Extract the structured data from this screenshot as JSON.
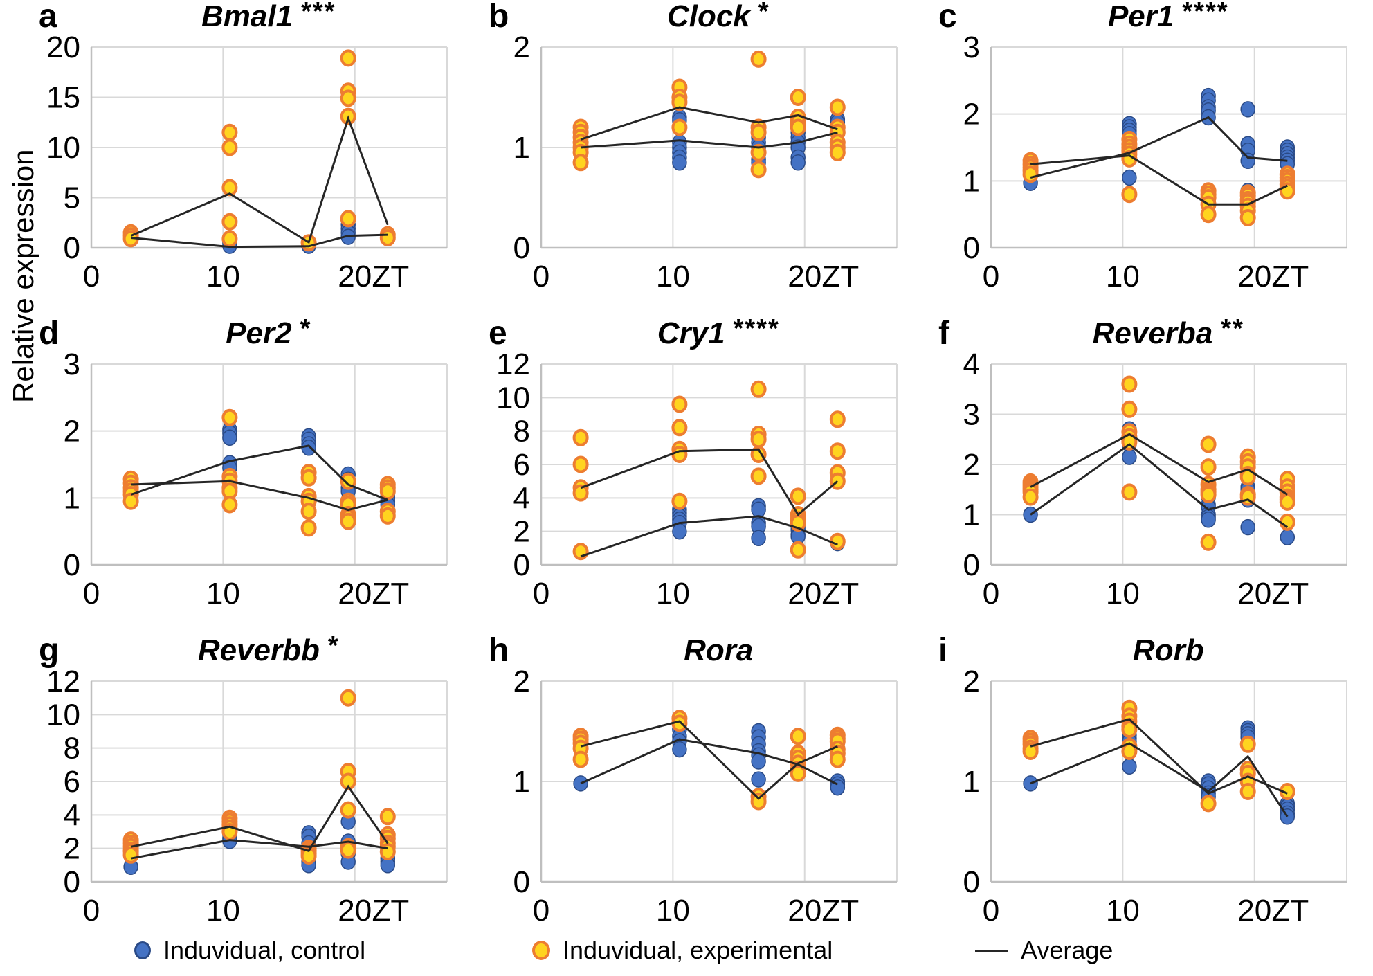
{
  "figure": {
    "ylabel": "Relative expression",
    "legend": {
      "control_label": "Induvidual, control",
      "experimental_label": "Induvidual, experimental",
      "average_label": "Average"
    },
    "colors": {
      "control_fill": "#4472c4",
      "control_stroke": "#2a4a86",
      "experimental_fill": "#ffd41f",
      "experimental_stroke": "#ed7d31",
      "average_line": "#262626",
      "grid": "#d9d9d9",
      "axis": "#bfbfbf",
      "text": "#000000"
    }
  },
  "chart_data": [
    {
      "panel": "a",
      "title": "Bmal1",
      "significance": "***",
      "type": "scatter",
      "xlabel": "ZT",
      "xticks": [
        0,
        10,
        20
      ],
      "xlim": [
        0,
        27
      ],
      "yticks": [
        0,
        5,
        10,
        15,
        20
      ],
      "ylim": [
        0,
        20
      ],
      "x": [
        3,
        10.5,
        16.5,
        19.5,
        22.5
      ],
      "control_points": [
        [
          1.0
        ],
        [
          0.5,
          0.2
        ],
        [
          0.2
        ],
        [
          2.3,
          1.9,
          1.5,
          1.1
        ],
        []
      ],
      "experimental_points": [
        [
          1.5,
          1.2,
          0.9
        ],
        [
          11.5,
          10.0,
          6.0,
          2.6,
          0.9
        ],
        [
          0.5
        ],
        [
          18.9,
          15.6,
          14.9,
          13.1,
          2.9
        ],
        [
          1.3,
          1.0
        ]
      ],
      "control_avg": [
        1.0,
        0.1,
        0.15,
        1.2,
        1.3
      ],
      "experimental_avg": [
        1.2,
        5.4,
        0.55,
        12.9,
        2.3
      ]
    },
    {
      "panel": "b",
      "title": "Clock",
      "significance": "*",
      "type": "scatter",
      "xlabel": "ZT",
      "xticks": [
        0,
        10,
        20
      ],
      "xlim": [
        0,
        27
      ],
      "yticks": [
        0,
        1,
        2
      ],
      "ylim": [
        0,
        2
      ],
      "x": [
        3,
        10.5,
        16.5,
        19.5,
        22.5
      ],
      "control_points": [
        [
          1.0
        ],
        [
          1.3,
          1.27,
          1.05,
          1.0,
          0.95,
          0.9,
          0.85
        ],
        [
          1.1,
          1.05,
          1.0,
          0.95,
          0.88,
          0.85
        ],
        [
          1.15,
          1.1,
          1.05,
          1.0,
          0.9,
          0.85
        ],
        [
          1.28,
          1.25,
          1.2,
          1.18
        ]
      ],
      "experimental_points": [
        [
          1.2,
          1.15,
          1.1,
          1.05,
          1.0,
          0.95,
          0.85
        ],
        [
          1.6,
          1.5,
          1.45,
          1.2
        ],
        [
          1.88,
          1.2,
          1.15,
          0.95,
          0.78
        ],
        [
          1.5,
          1.3,
          1.25,
          1.2
        ],
        [
          1.4,
          1.2,
          1.15,
          1.05,
          1.0,
          0.95
        ]
      ],
      "control_avg": [
        1.0,
        1.07,
        1.0,
        1.05,
        1.15
      ],
      "experimental_avg": [
        1.08,
        1.4,
        1.25,
        1.32,
        1.18
      ]
    },
    {
      "panel": "c",
      "title": "Per1",
      "significance": "****",
      "type": "scatter",
      "xlabel": "ZT",
      "xticks": [
        0,
        10,
        20
      ],
      "xlim": [
        0,
        27
      ],
      "yticks": [
        0,
        1,
        2,
        3
      ],
      "ylim": [
        0,
        3
      ],
      "x": [
        3,
        10.5,
        16.5,
        19.5,
        22.5
      ],
      "control_points": [
        [
          0.97
        ],
        [
          1.85,
          1.8,
          1.75,
          1.7,
          1.05
        ],
        [
          2.27,
          2.2,
          2.1,
          2.05,
          1.95
        ],
        [
          2.07,
          1.55,
          1.45,
          1.3,
          0.85
        ],
        [
          1.5,
          1.45,
          1.4,
          1.35,
          1.3,
          1.25
        ]
      ],
      "experimental_points": [
        [
          1.3,
          1.25,
          1.2,
          1.15,
          1.1
        ],
        [
          1.62,
          1.55,
          1.5,
          1.45,
          1.4,
          1.33,
          0.8
        ],
        [
          0.85,
          0.8,
          0.75,
          0.65,
          0.5
        ],
        [
          0.82,
          0.78,
          0.72,
          0.68,
          0.62,
          0.55,
          0.45
        ],
        [
          1.1,
          1.05,
          1.0,
          0.95,
          0.9,
          0.85
        ]
      ],
      "control_avg": [
        1.05,
        1.42,
        1.95,
        1.35,
        1.3
      ],
      "experimental_avg": [
        1.25,
        1.38,
        0.65,
        0.65,
        0.93
      ]
    },
    {
      "panel": "d",
      "title": "Per2",
      "significance": "*",
      "type": "scatter",
      "xlabel": "ZT",
      "xticks": [
        0,
        10,
        20
      ],
      "xlim": [
        0,
        27
      ],
      "yticks": [
        0,
        1,
        2,
        3
      ],
      "ylim": [
        0,
        3
      ],
      "x": [
        3,
        10.5,
        16.5,
        19.5,
        22.5
      ],
      "control_points": [
        [
          1.0
        ],
        [
          2.02,
          1.97,
          1.9,
          1.52,
          1.45,
          1.2
        ],
        [
          1.92,
          1.87,
          1.8,
          1.75
        ],
        [
          1.35,
          1.27,
          1.22,
          1.15,
          1.1
        ],
        [
          1.05,
          1.0,
          0.95,
          0.9
        ]
      ],
      "experimental_points": [
        [
          1.28,
          1.22,
          1.15,
          1.1,
          1.05,
          0.95
        ],
        [
          2.2,
          1.32,
          1.25,
          1.15,
          1.1,
          0.9
        ],
        [
          1.38,
          1.3,
          1.02,
          0.95,
          0.8,
          0.55
        ],
        [
          1.25,
          0.95,
          0.9,
          0.75,
          0.7,
          0.65
        ],
        [
          1.2,
          1.15,
          1.1,
          0.8,
          0.73
        ]
      ],
      "control_avg": [
        1.05,
        1.55,
        1.78,
        1.2,
        0.97
      ],
      "experimental_avg": [
        1.2,
        1.25,
        1.0,
        0.82,
        0.97
      ]
    },
    {
      "panel": "e",
      "title": "Cry1",
      "significance": "****",
      "type": "scatter",
      "xlabel": "ZT",
      "xticks": [
        0,
        10,
        20
      ],
      "xlim": [
        0,
        27
      ],
      "yticks": [
        0,
        2,
        4,
        6,
        8,
        10,
        12
      ],
      "ylim": [
        0,
        12
      ],
      "x": [
        3,
        10.5,
        16.5,
        19.5,
        22.5
      ],
      "control_points": [
        [],
        [
          3.3,
          3.1,
          2.9,
          2.7,
          2.5,
          2.0
        ],
        [
          3.5,
          3.3,
          2.5,
          2.3,
          1.6
        ],
        [
          2.3,
          2.1,
          1.8,
          1.7
        ],
        [
          1.3
        ]
      ],
      "experimental_points": [
        [
          7.6,
          6.0,
          4.6,
          4.3,
          0.8
        ],
        [
          9.6,
          8.2,
          6.9,
          6.6,
          3.8
        ],
        [
          10.5,
          7.8,
          7.5,
          6.6,
          5.3
        ],
        [
          4.1,
          3.0,
          2.7,
          2.5,
          0.9
        ],
        [
          8.7,
          6.8,
          5.5,
          5.0,
          1.4
        ]
      ],
      "control_avg": [
        0.5,
        2.5,
        2.9,
        2.2,
        1.2
      ],
      "experimental_avg": [
        4.6,
        6.8,
        6.9,
        3.0,
        5.0
      ]
    },
    {
      "panel": "f",
      "title": "Reverba",
      "significance": "**",
      "type": "scatter",
      "xlabel": "ZT",
      "xticks": [
        0,
        10,
        20
      ],
      "xlim": [
        0,
        27
      ],
      "yticks": [
        0,
        1,
        2,
        3,
        4
      ],
      "ylim": [
        0,
        4
      ],
      "x": [
        3,
        10.5,
        16.5,
        19.5,
        22.5
      ],
      "control_points": [
        [
          1.0
        ],
        [
          2.7,
          2.4,
          2.15
        ],
        [
          1.35,
          1.2,
          1.15,
          1.0,
          0.95,
          0.9
        ],
        [
          1.55,
          1.5,
          1.3,
          0.75
        ],
        [
          0.55
        ]
      ],
      "experimental_points": [
        [
          1.65,
          1.6,
          1.55,
          1.5,
          1.45,
          1.35
        ],
        [
          3.6,
          3.1,
          2.65,
          2.55,
          2.45,
          1.45
        ],
        [
          2.4,
          1.95,
          1.6,
          1.5,
          1.45,
          1.4,
          0.45
        ],
        [
          2.15,
          2.05,
          1.95,
          1.8,
          1.75,
          1.4,
          1.35
        ],
        [
          1.7,
          1.55,
          1.45,
          1.35,
          1.3,
          1.25,
          0.85
        ]
      ],
      "control_avg": [
        1.0,
        2.4,
        1.1,
        1.3,
        0.75
      ],
      "experimental_avg": [
        1.55,
        2.6,
        1.65,
        1.9,
        1.4
      ]
    },
    {
      "panel": "g",
      "title": "Reverbb",
      "significance": "*",
      "type": "scatter",
      "xlabel": "ZT",
      "xticks": [
        0,
        10,
        20
      ],
      "xlim": [
        0,
        27
      ],
      "yticks": [
        0,
        2,
        4,
        6,
        8,
        10,
        12
      ],
      "ylim": [
        0,
        12
      ],
      "x": [
        3,
        10.5,
        16.5,
        19.5,
        22.5
      ],
      "control_points": [
        [
          0.9
        ],
        [
          2.85,
          2.6,
          2.45
        ],
        [
          2.9,
          2.7,
          2.3,
          1.2,
          1.0
        ],
        [
          3.6,
          2.4,
          1.7,
          1.2
        ],
        [
          1.4,
          1.2,
          1.0
        ]
      ],
      "experimental_points": [
        [
          2.5,
          2.3,
          2.1,
          1.9,
          1.8,
          1.6
        ],
        [
          3.8,
          3.6,
          3.4,
          3.2,
          3.0
        ],
        [
          2.0,
          1.85,
          1.7,
          1.55
        ],
        [
          11.0,
          6.6,
          6.0,
          4.3,
          2.1,
          1.9
        ],
        [
          3.9,
          2.8,
          2.6,
          2.3,
          2.1,
          1.8
        ]
      ],
      "control_avg": [
        1.4,
        2.5,
        2.1,
        2.4,
        2.0
      ],
      "experimental_avg": [
        2.1,
        3.3,
        1.85,
        5.7,
        2.3
      ]
    },
    {
      "panel": "h",
      "title": "Rora",
      "significance": "",
      "type": "scatter",
      "xlabel": "ZT",
      "xticks": [
        0,
        10,
        20
      ],
      "xlim": [
        0,
        27
      ],
      "yticks": [
        0,
        1,
        2
      ],
      "ylim": [
        0,
        2
      ],
      "x": [
        3,
        10.5,
        16.5,
        19.5,
        22.5
      ],
      "control_points": [
        [
          0.98
        ],
        [
          1.52,
          1.45,
          1.4,
          1.32
        ],
        [
          1.5,
          1.44,
          1.37,
          1.3,
          1.26,
          1.2,
          1.02
        ],
        [
          1.18
        ],
        [
          1.0,
          0.97,
          0.94
        ]
      ],
      "experimental_points": [
        [
          1.45,
          1.42,
          1.38,
          1.33,
          1.22
        ],
        [
          1.63,
          1.58
        ],
        [
          0.85,
          0.8
        ],
        [
          1.45,
          1.28,
          1.23,
          1.18,
          1.12,
          1.08
        ],
        [
          1.46,
          1.43,
          1.4,
          1.32,
          1.28,
          1.22
        ]
      ],
      "control_avg": [
        0.98,
        1.42,
        1.28,
        1.17,
        0.97
      ],
      "experimental_avg": [
        1.35,
        1.6,
        0.83,
        1.18,
        1.35
      ]
    },
    {
      "panel": "i",
      "title": "Rorb",
      "significance": "",
      "type": "scatter",
      "xlabel": "ZT",
      "xticks": [
        0,
        10,
        20
      ],
      "xlim": [
        0,
        27
      ],
      "yticks": [
        0,
        1,
        2
      ],
      "ylim": [
        0,
        2
      ],
      "x": [
        3,
        10.5,
        16.5,
        19.5,
        22.5
      ],
      "control_points": [
        [
          0.98
        ],
        [
          1.46,
          1.43,
          1.4,
          1.15
        ],
        [
          1.0,
          0.97,
          0.93,
          0.88,
          0.85
        ],
        [
          1.53,
          1.5,
          1.47,
          1.44
        ],
        [
          0.78,
          0.75,
          0.72,
          0.68,
          0.65
        ]
      ],
      "experimental_points": [
        [
          1.43,
          1.4,
          1.37,
          1.33,
          1.3
        ],
        [
          1.73,
          1.65,
          1.6,
          1.55,
          1.52,
          1.35,
          1.3
        ],
        [
          0.78
        ],
        [
          1.37,
          1.12,
          1.08,
          1.0,
          0.9
        ],
        [
          0.9
        ]
      ],
      "control_avg": [
        0.98,
        1.38,
        0.9,
        1.25,
        0.65
      ],
      "experimental_avg": [
        1.35,
        1.62,
        0.88,
        1.05,
        0.88
      ]
    }
  ]
}
